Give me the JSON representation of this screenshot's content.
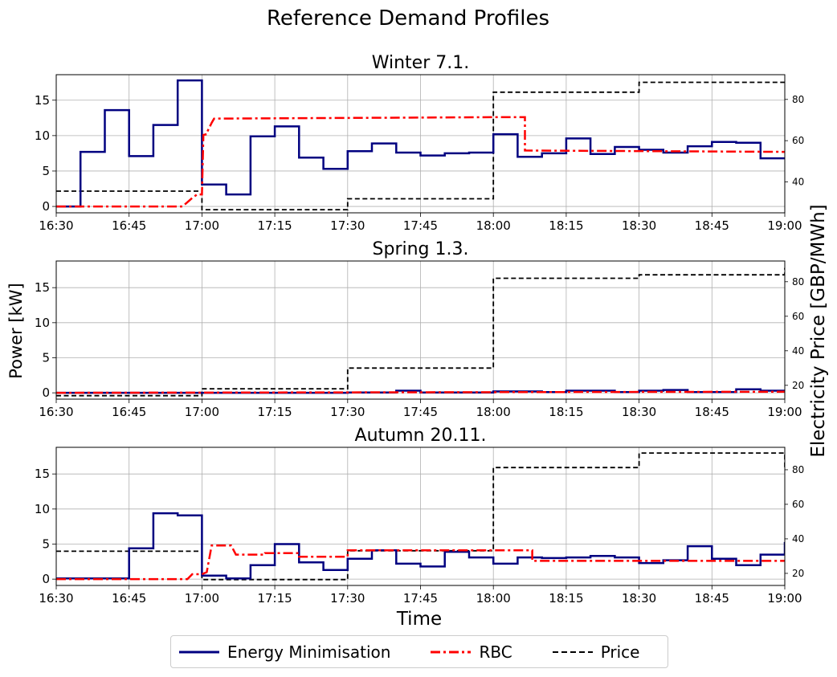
{
  "suptitle": "Reference Demand Profiles",
  "ylabel_left": "Power [kW]",
  "ylabel_right": "Electricity Price [GBP/MWh]",
  "legend": [
    {
      "label": "Energy Minimisation",
      "color": "#000080",
      "style": "solid"
    },
    {
      "label": "RBC",
      "color": "#ff0000",
      "style": "dashdot"
    },
    {
      "label": "Price",
      "color": "#000000",
      "style": "dashed"
    }
  ],
  "chart_data": [
    {
      "type": "line",
      "title": "Winter 7.1.",
      "xlabel": "",
      "x_ticks": [
        "16:30",
        "16:45",
        "17:00",
        "17:15",
        "17:30",
        "17:45",
        "18:00",
        "18:15",
        "18:30",
        "18:45",
        "19:00"
      ],
      "x_range_minutes": [
        0,
        150
      ],
      "ylim": [
        -0.9,
        18.6
      ],
      "y_ticks": [
        0,
        5,
        10,
        15
      ],
      "y2lim": [
        25,
        92
      ],
      "y2_ticks": [
        40,
        60,
        80
      ],
      "grid": true,
      "series": [
        {
          "name": "Energy Minimisation",
          "axis": "left",
          "color": "#000080",
          "style": "solid",
          "points": [
            [
              0,
              0
            ],
            [
              5,
              0
            ],
            [
              5,
              7.7
            ],
            [
              10,
              7.7
            ],
            [
              10,
              13.6
            ],
            [
              15,
              13.6
            ],
            [
              15,
              7.1
            ],
            [
              20,
              7.1
            ],
            [
              20,
              11.5
            ],
            [
              25,
              11.5
            ],
            [
              25,
              17.8
            ],
            [
              30,
              17.8
            ],
            [
              30,
              3.1
            ],
            [
              35,
              3.1
            ],
            [
              35,
              1.7
            ],
            [
              40,
              1.7
            ],
            [
              40,
              9.9
            ],
            [
              45,
              9.9
            ],
            [
              45,
              11.3
            ],
            [
              50,
              11.3
            ],
            [
              50,
              6.9
            ],
            [
              55,
              6.9
            ],
            [
              55,
              5.3
            ],
            [
              60,
              5.3
            ],
            [
              60,
              7.8
            ],
            [
              65,
              7.8
            ],
            [
              65,
              8.9
            ],
            [
              70,
              8.9
            ],
            [
              70,
              7.6
            ],
            [
              75,
              7.6
            ],
            [
              75,
              7.2
            ],
            [
              80,
              7.2
            ],
            [
              80,
              7.5
            ],
            [
              85,
              7.5
            ],
            [
              85,
              7.6
            ],
            [
              90,
              7.6
            ],
            [
              90,
              10.2
            ],
            [
              95,
              10.2
            ],
            [
              95,
              7.0
            ],
            [
              100,
              7.0
            ],
            [
              100,
              7.5
            ],
            [
              105,
              7.5
            ],
            [
              105,
              9.6
            ],
            [
              110,
              9.6
            ],
            [
              110,
              7.4
            ],
            [
              115,
              7.4
            ],
            [
              115,
              8.4
            ],
            [
              120,
              8.4
            ],
            [
              120,
              8.0
            ],
            [
              125,
              8.0
            ],
            [
              125,
              7.6
            ],
            [
              130,
              7.6
            ],
            [
              130,
              8.5
            ],
            [
              135,
              8.5
            ],
            [
              135,
              9.1
            ],
            [
              140,
              9.1
            ],
            [
              140,
              9.0
            ],
            [
              145,
              9.0
            ],
            [
              145,
              6.8
            ],
            [
              150,
              6.8
            ]
          ]
        },
        {
          "name": "RBC",
          "axis": "left",
          "color": "#ff0000",
          "style": "dashdot",
          "points": [
            [
              0,
              0
            ],
            [
              26,
              0
            ],
            [
              27,
              0.6
            ],
            [
              28,
              1.2
            ],
            [
              29,
              1.7
            ],
            [
              30,
              1.7
            ],
            [
              30.3,
              10.1
            ],
            [
              31,
              10.2
            ],
            [
              31,
              10.4
            ],
            [
              32,
              11.8
            ],
            [
              32.5,
              12.4
            ],
            [
              90,
              12.6
            ],
            [
              96.5,
              12.6
            ],
            [
              96.5,
              7.9
            ],
            [
              150,
              7.7
            ]
          ]
        },
        {
          "name": "Price",
          "axis": "right",
          "color": "#000000",
          "style": "dashed",
          "points": [
            [
              0,
              35.5
            ],
            [
              30,
              35.5
            ],
            [
              30,
              26.5
            ],
            [
              60,
              26.5
            ],
            [
              60,
              31.8
            ],
            [
              90,
              31.8
            ],
            [
              90,
              83.5
            ],
            [
              120,
              83.5
            ],
            [
              120,
              88.3
            ],
            [
              150,
              88.3
            ]
          ]
        }
      ]
    },
    {
      "type": "line",
      "title": "Spring 1.3.",
      "xlabel": "",
      "x_ticks": [
        "16:30",
        "16:45",
        "17:00",
        "17:15",
        "17:30",
        "17:45",
        "18:00",
        "18:15",
        "18:30",
        "18:45",
        "19:00"
      ],
      "x_range_minutes": [
        0,
        150
      ],
      "ylim": [
        -0.9,
        18.8
      ],
      "y_ticks": [
        0,
        5,
        10,
        15
      ],
      "y2lim": [
        12,
        92
      ],
      "y2_ticks": [
        20,
        40,
        60,
        80
      ],
      "grid": true,
      "series": [
        {
          "name": "Energy Minimisation",
          "axis": "left",
          "color": "#000080",
          "style": "solid",
          "points": [
            [
              0,
              0
            ],
            [
              60,
              0
            ],
            [
              60,
              0.05
            ],
            [
              70,
              0.05
            ],
            [
              70,
              0.3
            ],
            [
              75,
              0.3
            ],
            [
              75,
              0.05
            ],
            [
              90,
              0.05
            ],
            [
              90,
              0.2
            ],
            [
              100,
              0.2
            ],
            [
              100,
              0.1
            ],
            [
              105,
              0.1
            ],
            [
              105,
              0.3
            ],
            [
              115,
              0.3
            ],
            [
              115,
              0.1
            ],
            [
              120,
              0.1
            ],
            [
              120,
              0.3
            ],
            [
              125,
              0.3
            ],
            [
              125,
              0.4
            ],
            [
              130,
              0.4
            ],
            [
              130,
              0.1
            ],
            [
              140,
              0.1
            ],
            [
              140,
              0.5
            ],
            [
              145,
              0.5
            ],
            [
              145,
              0.3
            ],
            [
              150,
              0.3
            ]
          ]
        },
        {
          "name": "RBC",
          "axis": "left",
          "color": "#ff0000",
          "style": "dashdot",
          "points": [
            [
              0,
              0
            ],
            [
              150,
              0.15
            ]
          ]
        },
        {
          "name": "Price",
          "axis": "right",
          "color": "#000000",
          "style": "dashed",
          "points": [
            [
              0,
              14
            ],
            [
              30,
              14
            ],
            [
              30,
              18
            ],
            [
              60,
              18
            ],
            [
              60,
              30
            ],
            [
              90,
              30
            ],
            [
              90,
              82
            ],
            [
              120,
              82
            ],
            [
              120,
              84
            ],
            [
              150,
              84
            ],
            [
              150,
              88
            ]
          ]
        }
      ]
    },
    {
      "type": "line",
      "title": "Autumn 20.11.",
      "xlabel": "Time",
      "x_ticks": [
        "16:30",
        "16:45",
        "17:00",
        "17:15",
        "17:30",
        "17:45",
        "18:00",
        "18:15",
        "18:30",
        "18:45",
        "19:00"
      ],
      "x_range_minutes": [
        0,
        150
      ],
      "ylim": [
        -0.9,
        18.8
      ],
      "y_ticks": [
        0,
        5,
        10,
        15
      ],
      "y2lim": [
        13,
        93
      ],
      "y2_ticks": [
        20,
        40,
        60,
        80
      ],
      "grid": true,
      "series": [
        {
          "name": "Energy Minimisation",
          "axis": "left",
          "color": "#000080",
          "style": "solid",
          "points": [
            [
              0,
              0.1
            ],
            [
              15,
              0.1
            ],
            [
              15,
              4.4
            ],
            [
              20,
              4.4
            ],
            [
              20,
              9.4
            ],
            [
              25,
              9.4
            ],
            [
              25,
              9.1
            ],
            [
              30,
              9.1
            ],
            [
              30,
              0.5
            ],
            [
              35,
              0.5
            ],
            [
              35,
              0.1
            ],
            [
              40,
              0.1
            ],
            [
              40,
              2.0
            ],
            [
              45,
              2.0
            ],
            [
              45,
              5.0
            ],
            [
              50,
              5.0
            ],
            [
              50,
              2.4
            ],
            [
              55,
              2.4
            ],
            [
              55,
              1.3
            ],
            [
              60,
              1.3
            ],
            [
              60,
              2.9
            ],
            [
              65,
              2.9
            ],
            [
              65,
              4.1
            ],
            [
              70,
              4.1
            ],
            [
              70,
              2.2
            ],
            [
              75,
              2.2
            ],
            [
              75,
              1.8
            ],
            [
              80,
              1.8
            ],
            [
              80,
              3.9
            ],
            [
              85,
              3.9
            ],
            [
              85,
              3.1
            ],
            [
              90,
              3.1
            ],
            [
              90,
              2.2
            ],
            [
              95,
              2.2
            ],
            [
              95,
              3.1
            ],
            [
              100,
              3.1
            ],
            [
              100,
              3.0
            ],
            [
              105,
              3.0
            ],
            [
              105,
              3.1
            ],
            [
              110,
              3.1
            ],
            [
              110,
              3.3
            ],
            [
              115,
              3.3
            ],
            [
              115,
              3.1
            ],
            [
              120,
              3.1
            ],
            [
              120,
              2.3
            ],
            [
              125,
              2.3
            ],
            [
              125,
              2.7
            ],
            [
              130,
              2.7
            ],
            [
              130,
              4.7
            ],
            [
              135,
              4.7
            ],
            [
              135,
              2.9
            ],
            [
              140,
              2.9
            ],
            [
              140,
              2.0
            ],
            [
              145,
              2.0
            ],
            [
              145,
              3.5
            ],
            [
              150,
              3.5
            ],
            [
              150,
              5.3
            ]
          ]
        },
        {
          "name": "RBC",
          "axis": "left",
          "color": "#ff0000",
          "style": "dashdot",
          "points": [
            [
              0,
              0
            ],
            [
              27,
              0
            ],
            [
              28,
              0.7
            ],
            [
              30,
              0.7
            ],
            [
              31,
              1.0
            ],
            [
              32,
              4.8
            ],
            [
              36,
              4.8
            ],
            [
              37,
              3.5
            ],
            [
              43,
              3.5
            ],
            [
              43,
              3.7
            ],
            [
              50,
              3.7
            ],
            [
              50,
              3.2
            ],
            [
              60,
              3.2
            ],
            [
              60,
              4.1
            ],
            [
              98,
              4.1
            ],
            [
              98,
              2.6
            ],
            [
              150,
              2.6
            ]
          ]
        },
        {
          "name": "Price",
          "axis": "right",
          "color": "#000000",
          "style": "dashed",
          "points": [
            [
              0,
              32.8
            ],
            [
              30,
              32.8
            ],
            [
              30,
              16.4
            ],
            [
              60,
              16.4
            ],
            [
              60,
              33.1
            ],
            [
              90,
              33.1
            ],
            [
              90,
              81.3
            ],
            [
              120,
              81.3
            ],
            [
              120,
              89.7
            ],
            [
              150,
              89.7
            ],
            [
              150,
              81.0
            ]
          ]
        }
      ]
    }
  ]
}
